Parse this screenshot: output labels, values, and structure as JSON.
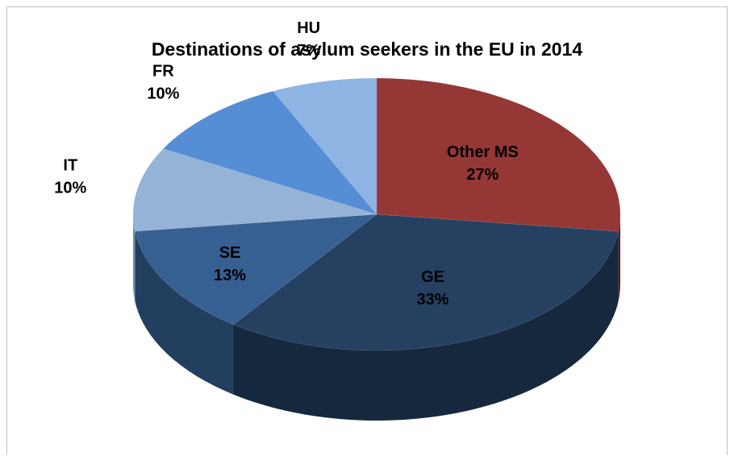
{
  "chart_data": {
    "type": "pie",
    "title": "Destinations of asylum seekers in the EU in 2014",
    "slices": [
      {
        "label": "Other MS",
        "pct_text": "27%",
        "value": 27,
        "color": "#953735",
        "side_color": "#5a1f1e"
      },
      {
        "label": "GE",
        "pct_text": "33%",
        "value": 33,
        "color": "#254061",
        "side_color": "#16283e"
      },
      {
        "label": "SE",
        "pct_text": "13%",
        "value": 13,
        "color": "#376092",
        "side_color": "#233f60"
      },
      {
        "label": "IT",
        "pct_text": "10%",
        "value": 10,
        "color": "#95b3d7",
        "side_color": "#6f8cad"
      },
      {
        "label": "FR",
        "pct_text": "10%",
        "value": 10,
        "color": "#558ed5",
        "side_color": "#3b68a0"
      },
      {
        "label": "HU",
        "pct_text": "7%",
        "value": 7,
        "color": "#8eb4e3",
        "side_color": "#6989ae"
      }
    ],
    "style": "3d",
    "legend": "none"
  }
}
